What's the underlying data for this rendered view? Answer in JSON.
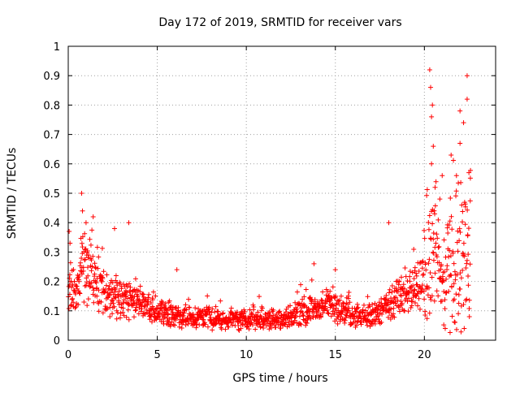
{
  "chart_data": {
    "type": "scatter",
    "title": "Day 172 of 2019, SRMTID for receiver vars",
    "xlabel": "GPS time / hours",
    "ylabel": "SRMTID / TECUs",
    "xlim": [
      0,
      24
    ],
    "ylim": [
      0,
      1
    ],
    "x_ticks": [
      0,
      5,
      10,
      15,
      20
    ],
    "y_ticks": [
      0,
      0.1,
      0.2,
      0.3,
      0.4,
      0.5,
      0.6,
      0.7,
      0.8,
      0.9,
      1
    ],
    "x_tick_labels": [
      "0",
      "5",
      "10",
      "15",
      "20"
    ],
    "y_tick_labels": [
      "0",
      "0.1",
      "0.2",
      "0.3",
      "0.4",
      "0.5",
      "0.6",
      "0.7",
      "0.8",
      "0.9",
      "1"
    ],
    "grid": true,
    "marker": "+",
    "series": [
      {
        "name": "SRMTID",
        "color": "#ff0000",
        "profile": [
          [
            0.0,
            0.16
          ],
          [
            0.5,
            0.16
          ],
          [
            0.8,
            0.26
          ],
          [
            1.2,
            0.24
          ],
          [
            1.8,
            0.18
          ],
          [
            2.5,
            0.15
          ],
          [
            3.2,
            0.14
          ],
          [
            4.0,
            0.13
          ],
          [
            4.8,
            0.1
          ],
          [
            5.5,
            0.09
          ],
          [
            6.5,
            0.08
          ],
          [
            8.0,
            0.075
          ],
          [
            9.5,
            0.07
          ],
          [
            11.0,
            0.075
          ],
          [
            12.0,
            0.07
          ],
          [
            13.0,
            0.09
          ],
          [
            14.0,
            0.11
          ],
          [
            14.8,
            0.12
          ],
          [
            15.5,
            0.1
          ],
          [
            16.5,
            0.08
          ],
          [
            17.2,
            0.09
          ],
          [
            18.0,
            0.12
          ],
          [
            19.0,
            0.15
          ],
          [
            19.8,
            0.19
          ],
          [
            20.3,
            0.3
          ],
          [
            20.8,
            0.28
          ],
          [
            21.2,
            0.2
          ],
          [
            21.6,
            0.26
          ],
          [
            22.0,
            0.3
          ],
          [
            22.3,
            0.32
          ],
          [
            22.6,
            0.3
          ]
        ],
        "peaks": [
          [
            0.05,
            0.37
          ],
          [
            0.1,
            0.33
          ],
          [
            0.75,
            0.5
          ],
          [
            0.8,
            0.44
          ],
          [
            1.0,
            0.4
          ],
          [
            1.4,
            0.42
          ],
          [
            2.6,
            0.38
          ],
          [
            3.4,
            0.4
          ],
          [
            6.1,
            0.24
          ],
          [
            13.8,
            0.26
          ],
          [
            15.0,
            0.24
          ],
          [
            18.0,
            0.4
          ],
          [
            20.3,
            0.92
          ],
          [
            20.35,
            0.86
          ],
          [
            20.45,
            0.8
          ],
          [
            20.4,
            0.76
          ],
          [
            20.5,
            0.66
          ],
          [
            20.4,
            0.6
          ],
          [
            20.6,
            0.52
          ],
          [
            21.0,
            0.56
          ],
          [
            21.5,
            0.63
          ],
          [
            22.0,
            0.78
          ],
          [
            22.2,
            0.74
          ],
          [
            22.4,
            0.9
          ],
          [
            22.4,
            0.82
          ],
          [
            22.5,
            0.57
          ],
          [
            22.0,
            0.67
          ],
          [
            21.8,
            0.56
          ]
        ]
      }
    ]
  }
}
